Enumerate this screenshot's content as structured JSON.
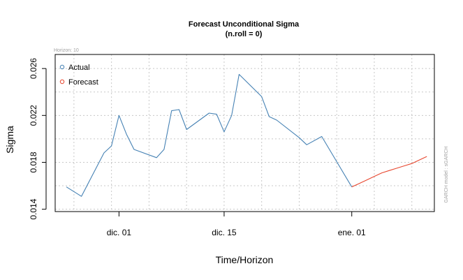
{
  "chart_data": {
    "type": "line",
    "title": "Forecast Unconditional Sigma",
    "subtitle": "(n.roll = 0)",
    "xlabel": "Time/Horizon",
    "ylabel": "Sigma",
    "ylim": [
      0.0138,
      0.0272
    ],
    "yticks": [
      "0.014",
      "0.018",
      "0.022",
      "0.026"
    ],
    "xticks": [
      "dic. 01",
      "dic. 15",
      "ene. 01"
    ],
    "xtick_days": [
      1,
      15,
      32
    ],
    "xlim_days": [
      -7.5,
      43
    ],
    "grid": true,
    "legend_position": "top-left",
    "note_top_left": "Horizon: 10",
    "note_right": "GARCH model : sGARCH",
    "colors": {
      "actual": "#4682B4",
      "forecast": "#E8472F",
      "grid": "#c8c8c8"
    },
    "series": [
      {
        "name": "Actual",
        "x_days": [
          -6,
          -4,
          -1,
          0,
          1,
          2,
          3,
          6,
          7,
          8,
          9,
          10,
          13,
          14,
          15,
          16,
          17,
          20,
          21,
          22,
          25,
          26,
          28,
          32
        ],
        "values": [
          0.0159,
          0.0151,
          0.0188,
          0.0194,
          0.022,
          0.0204,
          0.0191,
          0.0184,
          0.0191,
          0.0224,
          0.0225,
          0.0208,
          0.0222,
          0.0221,
          0.0206,
          0.022,
          0.0255,
          0.0236,
          0.0219,
          0.0216,
          0.0201,
          0.0195,
          0.0202,
          0.0159
        ]
      },
      {
        "name": "Forecast",
        "x_days": [
          32,
          33,
          34,
          35,
          36,
          37,
          38,
          39,
          40,
          41,
          42
        ],
        "values": [
          0.0159,
          0.0162,
          0.0165,
          0.0168,
          0.0171,
          0.0173,
          0.0175,
          0.0177,
          0.0179,
          0.0182,
          0.0185
        ]
      }
    ]
  }
}
